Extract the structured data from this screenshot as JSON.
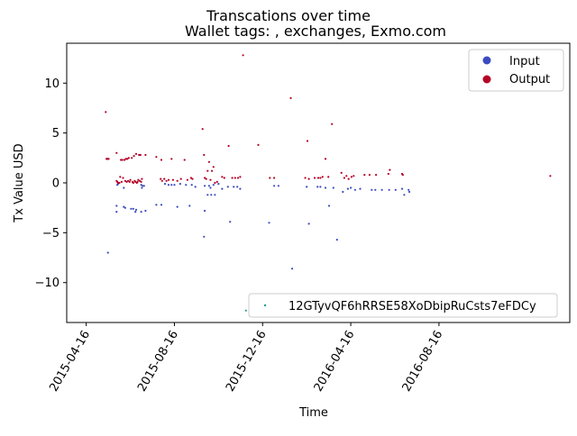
{
  "chart_data": {
    "type": "scatter",
    "title": "Transcations over time",
    "subtitle": "Wallet tags: , exchanges, Exmo.com",
    "xlabel": "Time",
    "ylabel": "Tx Value USD",
    "x_ticks": [
      "2015-04-16",
      "2015-08-16",
      "2015-12-16",
      "2016-04-16",
      "2016-08-16"
    ],
    "y_ticks": [
      -10,
      -5,
      0,
      5,
      10
    ],
    "xlim": [
      "2015-03-20",
      "2017-02-13"
    ],
    "ylim": [
      -14,
      14
    ],
    "grid": false,
    "legend_placement": "upper right",
    "series": [
      {
        "name": "Input",
        "color": "#3b4cc0",
        "points": [
          [
            "2015-05-16",
            -7.0
          ],
          [
            "2015-05-28",
            -2.3
          ],
          [
            "2015-05-28",
            -2.9
          ],
          [
            "2015-05-29",
            -0.2
          ],
          [
            "2015-05-30",
            -0.1
          ],
          [
            "2015-06-07",
            -2.4
          ],
          [
            "2015-06-07",
            -0.5
          ],
          [
            "2015-06-09",
            -2.5
          ],
          [
            "2015-06-17",
            -2.6
          ],
          [
            "2015-06-20",
            -2.6
          ],
          [
            "2015-06-23",
            -2.9
          ],
          [
            "2015-06-24",
            -2.7
          ],
          [
            "2015-07-01",
            -2.9
          ],
          [
            "2015-07-01",
            -0.2
          ],
          [
            "2015-07-02",
            -0.5
          ],
          [
            "2015-07-03",
            -0.3
          ],
          [
            "2015-07-05",
            -0.3
          ],
          [
            "2015-07-07",
            -2.8
          ],
          [
            "2015-07-22",
            -2.2
          ],
          [
            "2015-07-29",
            -2.2
          ],
          [
            "2015-08-03",
            -0.1
          ],
          [
            "2015-08-08",
            -0.2
          ],
          [
            "2015-08-12",
            -0.2
          ],
          [
            "2015-08-16",
            -0.2
          ],
          [
            "2015-08-20",
            -2.4
          ],
          [
            "2015-08-24",
            -0.1
          ],
          [
            "2015-09-01",
            -0.2
          ],
          [
            "2015-09-06",
            -2.3
          ],
          [
            "2015-09-09",
            -0.2
          ],
          [
            "2015-09-14",
            -0.4
          ],
          [
            "2015-09-26",
            -5.4
          ],
          [
            "2015-09-27",
            -2.8
          ],
          [
            "2015-09-27",
            -0.3
          ],
          [
            "2015-10-01",
            -1.2
          ],
          [
            "2015-10-03",
            -0.3
          ],
          [
            "2015-10-05",
            -0.5
          ],
          [
            "2015-10-06",
            -1.2
          ],
          [
            "2015-10-09",
            -0.2
          ],
          [
            "2015-10-11",
            -1.2
          ],
          [
            "2015-10-16",
            -0.1
          ],
          [
            "2015-10-21",
            -0.6
          ],
          [
            "2015-10-29",
            -0.4
          ],
          [
            "2015-11-01",
            -3.9
          ],
          [
            "2015-11-06",
            -0.4
          ],
          [
            "2015-11-11",
            -0.4
          ],
          [
            "2015-11-15",
            -0.6
          ],
          [
            "2015-12-25",
            -4.0
          ],
          [
            "2016-01-01",
            -0.3
          ],
          [
            "2016-01-07",
            -0.3
          ],
          [
            "2016-01-26",
            -8.6
          ],
          [
            "2016-02-15",
            -0.4
          ],
          [
            "2016-02-18",
            -4.1
          ],
          [
            "2016-03-01",
            -0.4
          ],
          [
            "2016-03-05",
            -0.4
          ],
          [
            "2016-03-12",
            -0.5
          ],
          [
            "2016-03-17",
            -2.3
          ],
          [
            "2016-03-23",
            -0.5
          ],
          [
            "2016-03-28",
            -5.7
          ],
          [
            "2016-04-05",
            -0.9
          ],
          [
            "2016-04-12",
            -0.6
          ],
          [
            "2016-04-16",
            -0.5
          ],
          [
            "2016-04-22",
            -0.7
          ],
          [
            "2016-04-29",
            -0.6
          ],
          [
            "2016-05-15",
            -0.7
          ],
          [
            "2016-05-20",
            -0.7
          ],
          [
            "2016-05-29",
            -0.7
          ],
          [
            "2016-06-08",
            -0.7
          ],
          [
            "2016-06-17",
            -0.7
          ],
          [
            "2016-06-26",
            -0.6
          ],
          [
            "2016-06-29",
            -1.2
          ],
          [
            "2016-07-05",
            -0.7
          ],
          [
            "2016-07-06",
            -0.9
          ]
        ]
      },
      {
        "name": "Output",
        "color": "#b40426",
        "points": [
          [
            "2015-05-13",
            7.1
          ],
          [
            "2015-05-14",
            2.4
          ],
          [
            "2015-05-15",
            2.4
          ],
          [
            "2015-05-16",
            2.4
          ],
          [
            "2015-05-17",
            2.4
          ],
          [
            "2015-05-28",
            3.0
          ],
          [
            "2015-05-28",
            0.2
          ],
          [
            "2015-05-29",
            0.1
          ],
          [
            "2015-05-30",
            0.0
          ],
          [
            "2015-06-01",
            0.0
          ],
          [
            "2015-06-02",
            0.6
          ],
          [
            "2015-06-03",
            2.3
          ],
          [
            "2015-06-04",
            0.1
          ],
          [
            "2015-06-05",
            2.3
          ],
          [
            "2015-06-06",
            0.5
          ],
          [
            "2015-06-08",
            2.3
          ],
          [
            "2015-06-09",
            0.2
          ],
          [
            "2015-06-10",
            2.4
          ],
          [
            "2015-06-11",
            0.1
          ],
          [
            "2015-06-12",
            2.4
          ],
          [
            "2015-06-13",
            0.2
          ],
          [
            "2015-06-14",
            2.5
          ],
          [
            "2015-06-15",
            0.1
          ],
          [
            "2015-06-16",
            0.3
          ],
          [
            "2015-06-18",
            2.5
          ],
          [
            "2015-06-19",
            0.1
          ],
          [
            "2015-06-20",
            0.0
          ],
          [
            "2015-06-21",
            2.7
          ],
          [
            "2015-06-22",
            0.2
          ],
          [
            "2015-06-23",
            0.1
          ],
          [
            "2015-06-24",
            2.9
          ],
          [
            "2015-06-25",
            0.0
          ],
          [
            "2015-06-26",
            0.1
          ],
          [
            "2015-06-27",
            0.3
          ],
          [
            "2015-06-28",
            2.8
          ],
          [
            "2015-06-29",
            0.2
          ],
          [
            "2015-06-30",
            2.8
          ],
          [
            "2015-07-01",
            0.1
          ],
          [
            "2015-07-02",
            0.4
          ],
          [
            "2015-07-07",
            2.8
          ],
          [
            "2015-07-22",
            2.6
          ],
          [
            "2015-07-29",
            2.3
          ],
          [
            "2015-07-28",
            0.4
          ],
          [
            "2015-07-30",
            0.2
          ],
          [
            "2015-08-02",
            0.4
          ],
          [
            "2015-08-05",
            0.2
          ],
          [
            "2015-08-08",
            0.3
          ],
          [
            "2015-08-12",
            2.4
          ],
          [
            "2015-08-14",
            0.3
          ],
          [
            "2015-08-20",
            0.2
          ],
          [
            "2015-08-25",
            0.4
          ],
          [
            "2015-08-30",
            2.3
          ],
          [
            "2015-09-03",
            0.3
          ],
          [
            "2015-09-08",
            0.5
          ],
          [
            "2015-09-10",
            0.4
          ],
          [
            "2015-09-24",
            5.4
          ],
          [
            "2015-09-26",
            2.8
          ],
          [
            "2015-09-27",
            0.5
          ],
          [
            "2015-09-29",
            0.4
          ],
          [
            "2015-10-01",
            1.2
          ],
          [
            "2015-10-03",
            2.1
          ],
          [
            "2015-10-05",
            0.3
          ],
          [
            "2015-10-07",
            1.2
          ],
          [
            "2015-10-09",
            1.6
          ],
          [
            "2015-10-11",
            0.0
          ],
          [
            "2015-10-14",
            0.1
          ],
          [
            "2015-10-21",
            0.6
          ],
          [
            "2015-10-24",
            0.5
          ],
          [
            "2015-10-30",
            3.7
          ],
          [
            "2015-11-04",
            0.5
          ],
          [
            "2015-11-08",
            0.5
          ],
          [
            "2015-11-12",
            0.5
          ],
          [
            "2015-11-15",
            0.6
          ],
          [
            "2015-11-19",
            12.8
          ],
          [
            "2015-12-10",
            3.8
          ],
          [
            "2015-12-26",
            0.5
          ],
          [
            "2016-01-01",
            0.5
          ],
          [
            "2016-01-24",
            8.5
          ],
          [
            "2016-02-13",
            0.5
          ],
          [
            "2016-02-16",
            4.2
          ],
          [
            "2016-02-18",
            0.4
          ],
          [
            "2016-02-26",
            0.5
          ],
          [
            "2016-03-02",
            0.5
          ],
          [
            "2016-03-05",
            0.5
          ],
          [
            "2016-03-08",
            0.6
          ],
          [
            "2016-03-12",
            2.4
          ],
          [
            "2016-03-16",
            0.6
          ],
          [
            "2016-03-21",
            5.9
          ],
          [
            "2016-04-03",
            1.0
          ],
          [
            "2016-04-07",
            0.5
          ],
          [
            "2016-04-10",
            0.7
          ],
          [
            "2016-04-13",
            0.4
          ],
          [
            "2016-04-17",
            0.6
          ],
          [
            "2016-04-20",
            0.7
          ],
          [
            "2016-05-05",
            0.8
          ],
          [
            "2016-05-12",
            0.8
          ],
          [
            "2016-05-21",
            0.8
          ],
          [
            "2016-06-07",
            0.9
          ],
          [
            "2016-06-09",
            1.3
          ],
          [
            "2016-06-26",
            0.9
          ],
          [
            "2016-06-27",
            0.8
          ],
          [
            "2017-01-17",
            0.7
          ]
        ]
      },
      {
        "name": "12GTyvQF6hRRSE58XoDbipRuCsts7eFDCy",
        "color": "#2a9d8f",
        "points": [
          [
            "2015-11-23",
            -12.8
          ]
        ]
      }
    ]
  }
}
